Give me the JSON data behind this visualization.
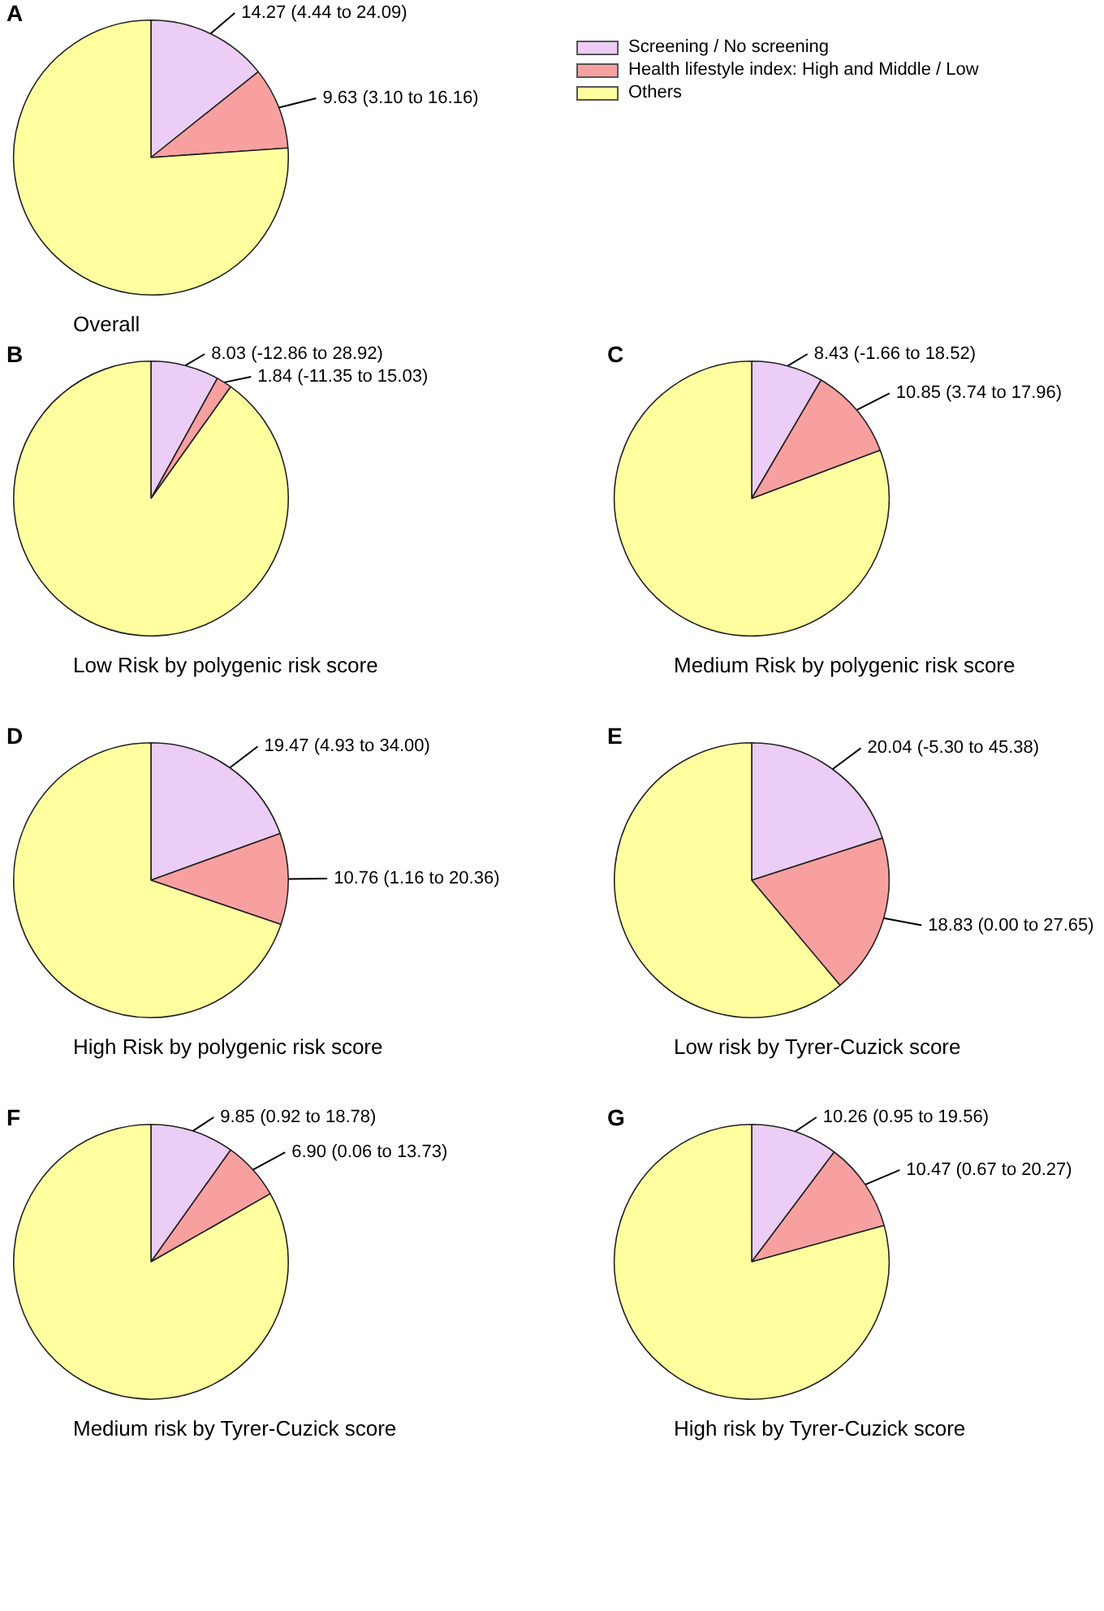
{
  "chart_data": [
    {
      "type": "pie",
      "title": "A",
      "xlabel": "Overall",
      "legend": "right",
      "categories": [
        "Screening / No screening",
        "Health lifestyle index: High and Middle / Low",
        "Others"
      ],
      "values": [
        14.27,
        9.63,
        76.1
      ],
      "colors": [
        "#ebcdf5",
        "#f8a0a0",
        "#ffffa0"
      ],
      "value_labels": [
        "14.27 (4.44 to 24.09)",
        "9.63 (3.10 to 16.16)",
        null
      ]
    },
    {
      "type": "pie",
      "title": "B",
      "xlabel": "Low Risk by polygenic risk score",
      "categories": [
        null,
        null,
        null
      ],
      "values": [
        8.03,
        1.84,
        90.13
      ],
      "colors": [
        "#ebcdf5",
        "#f8a0a0",
        "#ffffa0"
      ],
      "value_labels": [
        "8.03 (-12.86 to 28.92)",
        "1.84 (-11.35 to 15.03)",
        null
      ]
    },
    {
      "type": "pie",
      "title": "C",
      "xlabel": "Medium Risk by polygenic risk score",
      "categories": [
        null,
        null,
        null
      ],
      "values": [
        8.43,
        10.85,
        80.72
      ],
      "colors": [
        "#ebcdf5",
        "#f8a0a0",
        "#ffffa0"
      ],
      "value_labels": [
        "8.43 (-1.66 to 18.52)",
        "10.85 (3.74 to 17.96)",
        null
      ]
    },
    {
      "type": "pie",
      "title": "D",
      "xlabel": "High Risk by polygenic risk score",
      "categories": [
        null,
        null,
        null
      ],
      "values": [
        19.47,
        10.76,
        69.77
      ],
      "colors": [
        "#ebcdf5",
        "#f8a0a0",
        "#ffffa0"
      ],
      "value_labels": [
        "19.47 (4.93 to 34.00)",
        "10.76 (1.16 to 20.36)",
        null
      ]
    },
    {
      "type": "pie",
      "title": "E",
      "xlabel": "Low risk by Tyrer-Cuzick score",
      "categories": [
        null,
        null,
        null
      ],
      "values": [
        20.04,
        18.83,
        61.13
      ],
      "colors": [
        "#ebcdf5",
        "#f8a0a0",
        "#ffffa0"
      ],
      "value_labels": [
        "20.04 (-5.30 to 45.38)",
        "18.83 (0.00 to 27.65)",
        null
      ]
    },
    {
      "type": "pie",
      "title": "F",
      "xlabel": "Medium risk by Tyrer-Cuzick score",
      "categories": [
        null,
        null,
        null
      ],
      "values": [
        9.85,
        6.9,
        83.25
      ],
      "colors": [
        "#ebcdf5",
        "#f8a0a0",
        "#ffffa0"
      ],
      "value_labels": [
        "9.85 (0.92 to 18.78)",
        "6.90 (0.06 to 13.73)",
        null
      ]
    },
    {
      "type": "pie",
      "title": "G",
      "xlabel": "High risk by Tyrer-Cuzick score",
      "categories": [
        null,
        null,
        null
      ],
      "values": [
        10.26,
        10.47,
        79.27
      ],
      "colors": [
        "#ebcdf5",
        "#f8a0a0",
        "#ffffa0"
      ],
      "value_labels": [
        "10.26 (0.95 to 19.56)",
        "10.47 (0.67 to 20.27)",
        null
      ]
    }
  ]
}
